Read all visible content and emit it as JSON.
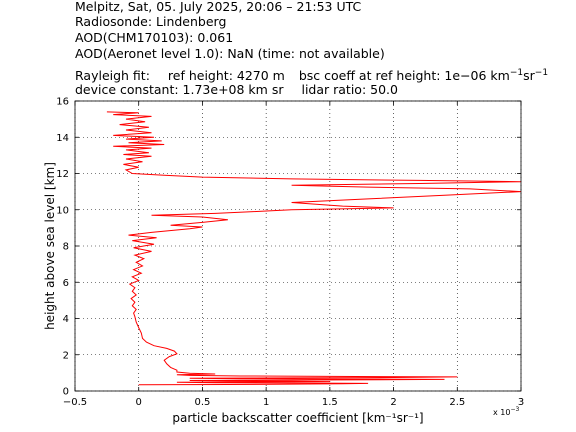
{
  "header": {
    "line1": "Melpitz, Sat, 05. July 2025, 20:06 – 21:53 UTC",
    "line2": "Radiosonde: Lindenberg",
    "line3": "AOD(CHM170103): 0.061",
    "line4": "AOD(Aeronet level 1.0): NaN   (time: not available)",
    "rayleigh_label": "Rayleigh fit:",
    "ref_height": "ref height: 4270 m",
    "bsc_coeff": "bsc coeff at ref height: 1e−06 km",
    "device_constant": "device constant: 1.73e+08 km sr",
    "lidar_ratio": "lidar ratio: 50.0"
  },
  "chart_data": {
    "type": "line",
    "xlabel": "particle backscatter coefficient [km⁻¹sr⁻¹]",
    "ylabel": "height above sea level [km]",
    "xlim": [
      -0.0005,
      0.003
    ],
    "ylim": [
      0,
      16
    ],
    "x_ticks": [
      -0.5,
      0,
      0.5,
      1,
      1.5,
      2,
      2.5,
      3
    ],
    "x_tick_labels": [
      "−0.5",
      "0",
      "0.5",
      "1",
      "1.5",
      "2",
      "2.5",
      "3"
    ],
    "x_scale_label": "x 10",
    "x_scale_exp": "−3",
    "y_ticks": [
      0,
      2,
      4,
      6,
      8,
      10,
      12,
      14,
      16
    ],
    "y_tick_labels": [
      "0",
      "2",
      "4",
      "6",
      "8",
      "10",
      "12",
      "14",
      "16"
    ],
    "grid": true,
    "series": [
      {
        "color": "#ff0000",
        "points": [
          [
            0.0,
            0.35
          ],
          [
            0.0007,
            0.36
          ],
          [
            0.0012,
            0.38
          ],
          [
            0.0016,
            0.4
          ],
          [
            0.0018,
            0.42
          ],
          [
            0.0012,
            0.44
          ],
          [
            0.0006,
            0.46
          ],
          [
            0.0003,
            0.48
          ],
          [
            0.0009,
            0.5
          ],
          [
            0.0015,
            0.52
          ],
          [
            0.0012,
            0.54
          ],
          [
            0.0007,
            0.56
          ],
          [
            0.0004,
            0.58
          ],
          [
            0.0011,
            0.6
          ],
          [
            0.0019,
            0.62
          ],
          [
            0.0024,
            0.64
          ],
          [
            0.0015,
            0.66
          ],
          [
            0.0008,
            0.68
          ],
          [
            0.0004,
            0.7
          ],
          [
            0.0012,
            0.72
          ],
          [
            0.0019,
            0.74
          ],
          [
            0.0022,
            0.76
          ],
          [
            0.0025,
            0.78
          ],
          [
            0.0017,
            0.8
          ],
          [
            0.0008,
            0.83
          ],
          [
            0.0004,
            0.86
          ],
          [
            0.0003,
            0.9
          ],
          [
            0.0006,
            0.94
          ],
          [
            0.0004,
            0.98
          ],
          [
            0.0003,
            1.05
          ],
          [
            0.0003,
            1.15
          ],
          [
            0.00025,
            1.3
          ],
          [
            0.00022,
            1.5
          ],
          [
            0.0002,
            1.7
          ],
          [
            0.00024,
            1.9
          ],
          [
            0.0003,
            2.05
          ],
          [
            0.00028,
            2.2
          ],
          [
            0.00022,
            2.35
          ],
          [
            0.00012,
            2.5
          ],
          [
            6e-05,
            2.7
          ],
          [
            3e-05,
            2.9
          ],
          [
            2e-05,
            3.2
          ],
          [
            0.0,
            3.5
          ],
          [
            -2e-05,
            3.8
          ],
          [
            -3e-05,
            4.1
          ],
          [
            -4e-05,
            4.3
          ],
          [
            -2e-05,
            4.5
          ],
          [
            -5e-05,
            4.7
          ],
          [
            -3e-05,
            4.9
          ],
          [
            -6e-05,
            5.1
          ],
          [
            -2e-05,
            5.3
          ],
          [
            -5e-05,
            5.5
          ],
          [
            -3e-05,
            5.7
          ],
          [
            -7e-05,
            5.9
          ],
          [
            0.0,
            6.1
          ],
          [
            -5e-05,
            6.3
          ],
          [
            2e-05,
            6.5
          ],
          [
            -4e-05,
            6.7
          ],
          [
            3e-05,
            6.9
          ],
          [
            -2e-05,
            7.1
          ],
          [
            4e-05,
            7.3
          ],
          [
            -3e-05,
            7.5
          ],
          [
            0.0001,
            7.7
          ],
          [
            -4e-05,
            7.9
          ],
          [
            0.00012,
            8.1
          ],
          [
            -5e-05,
            8.3
          ],
          [
            0.00014,
            8.45
          ],
          [
            -8e-05,
            8.6
          ],
          [
            0.0001,
            8.75
          ],
          [
            0.0004,
            8.95
          ],
          [
            0.0005,
            9.05
          ],
          [
            0.00025,
            9.15
          ],
          [
            0.0005,
            9.3
          ],
          [
            0.0007,
            9.45
          ],
          [
            0.0005,
            9.6
          ],
          [
            0.0001,
            9.7
          ],
          [
            0.0006,
            9.8
          ],
          [
            0.0009,
            9.9
          ],
          [
            0.0012,
            10.0
          ],
          [
            0.002,
            10.1
          ],
          [
            0.0016,
            10.2
          ],
          [
            0.0012,
            10.4
          ],
          [
            0.0018,
            10.6
          ],
          [
            0.0024,
            10.8
          ],
          [
            0.003,
            11.0
          ],
          [
            0.0026,
            11.15
          ],
          [
            0.0018,
            11.25
          ],
          [
            0.0012,
            11.35
          ],
          [
            0.0022,
            11.45
          ],
          [
            0.003,
            11.55
          ],
          [
            0.0022,
            11.62
          ],
          [
            0.0012,
            11.7
          ],
          [
            0.0005,
            11.8
          ],
          [
            0.0002,
            11.9
          ],
          [
            -5e-05,
            12.0
          ],
          [
            -0.0001,
            12.2
          ],
          [
            0.0,
            12.35
          ],
          [
            -0.00012,
            12.5
          ],
          [
            3e-05,
            12.65
          ],
          [
            -0.0001,
            12.8
          ],
          [
            0.0001,
            12.95
          ],
          [
            -0.00012,
            13.05
          ],
          [
            8e-05,
            13.15
          ],
          [
            -0.0001,
            13.3
          ],
          [
            0.0001,
            13.4
          ],
          [
            -0.0002,
            13.5
          ],
          [
            0.0002,
            13.6
          ],
          [
            -8e-05,
            13.7
          ],
          [
            0.00018,
            13.8
          ],
          [
            -0.0001,
            13.9
          ],
          [
            0.00012,
            14.0
          ],
          [
            -0.0002,
            14.1
          ],
          [
            0.0001,
            14.25
          ],
          [
            -0.0001,
            14.4
          ],
          [
            8e-05,
            14.55
          ],
          [
            -0.00015,
            14.7
          ],
          [
            5e-05,
            14.85
          ],
          [
            -0.0001,
            15.0
          ],
          [
            0.0001,
            15.15
          ],
          [
            -0.0002,
            15.25
          ],
          [
            0.0,
            15.35
          ],
          [
            -0.00025,
            15.4
          ]
        ]
      }
    ]
  }
}
